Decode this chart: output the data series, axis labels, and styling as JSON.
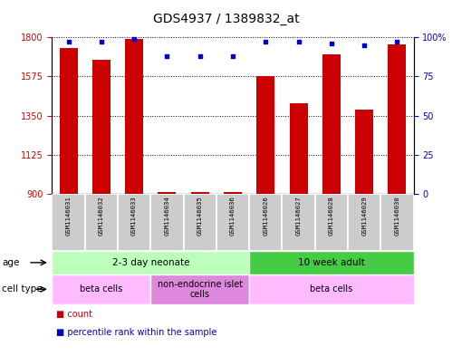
{
  "title": "GDS4937 / 1389832_at",
  "samples": [
    "GSM1146031",
    "GSM1146032",
    "GSM1146033",
    "GSM1146034",
    "GSM1146035",
    "GSM1146036",
    "GSM1146026",
    "GSM1146027",
    "GSM1146028",
    "GSM1146029",
    "GSM1146030"
  ],
  "bar_values": [
    1740,
    1670,
    1790,
    910,
    912,
    910,
    1575,
    1420,
    1700,
    1385,
    1760
  ],
  "percentile_values": [
    97,
    97,
    99,
    88,
    88,
    88,
    97,
    97,
    96,
    95,
    97
  ],
  "bar_color": "#cc0000",
  "dot_color": "#0000cc",
  "ylim_left": [
    900,
    1800
  ],
  "ylim_right": [
    0,
    100
  ],
  "yticks_left": [
    900,
    1125,
    1350,
    1575,
    1800
  ],
  "yticks_right": [
    0,
    25,
    50,
    75,
    100
  ],
  "ytick_labels_right": [
    "0",
    "25",
    "50",
    "75",
    "100%"
  ],
  "age_groups": [
    {
      "label": "2-3 day neonate",
      "start": 0,
      "end": 6,
      "color": "#bbffbb"
    },
    {
      "label": "10 week adult",
      "start": 6,
      "end": 11,
      "color": "#44cc44"
    }
  ],
  "cell_type_groups": [
    {
      "label": "beta cells",
      "start": 0,
      "end": 3,
      "color": "#ffbbff"
    },
    {
      "label": "non-endocrine islet\ncells",
      "start": 3,
      "end": 6,
      "color": "#dd88dd"
    },
    {
      "label": "beta cells",
      "start": 6,
      "end": 11,
      "color": "#ffbbff"
    }
  ],
  "age_row_label": "age",
  "cell_type_row_label": "cell type",
  "legend_items": [
    {
      "color": "#cc0000",
      "label": "count"
    },
    {
      "color": "#0000cc",
      "label": "percentile rank within the sample"
    }
  ],
  "bar_width": 0.55,
  "title_fontsize": 10,
  "tick_fontsize": 7,
  "label_fontsize": 7.5,
  "sample_fontsize": 5.2,
  "legend_fontsize": 7
}
